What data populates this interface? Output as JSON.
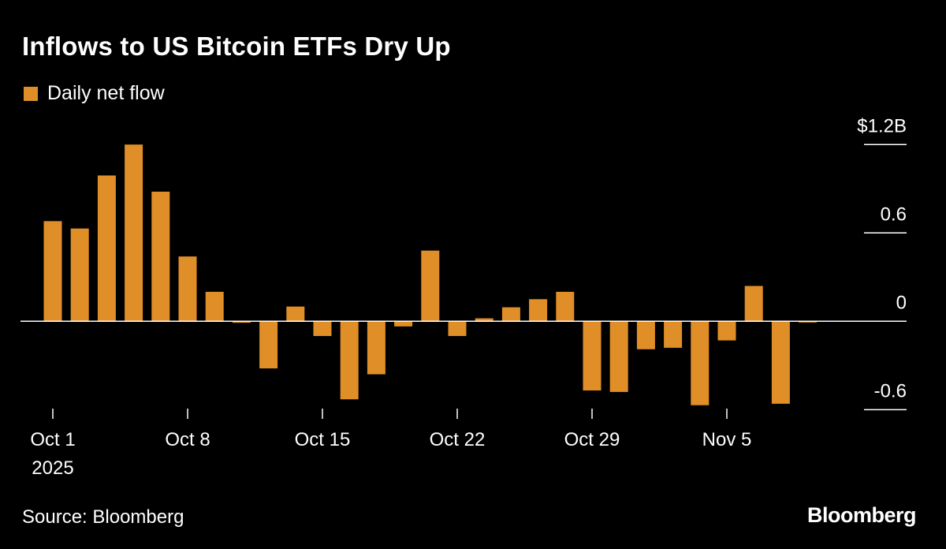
{
  "chart_data": {
    "type": "bar",
    "title": "Inflows to US Bitcoin ETFs Dry Up",
    "legend": {
      "position": "top-left",
      "entries": [
        {
          "name": "Daily net flow",
          "color": "#e08e27"
        }
      ]
    },
    "series": [
      {
        "name": "Daily net flow",
        "color": "#e08e27",
        "values": [
          0.68,
          0.63,
          0.99,
          1.2,
          0.88,
          0.44,
          0.2,
          -0.01,
          -0.32,
          0.1,
          -0.1,
          -0.53,
          -0.36,
          -0.035,
          0.48,
          -0.1,
          0.02,
          0.095,
          0.15,
          0.2,
          -0.47,
          -0.48,
          -0.19,
          -0.18,
          -0.57,
          -0.13,
          0.24,
          -0.56,
          -0.005
        ]
      }
    ],
    "categories": [
      "Oct 1",
      "Oct 2",
      "Oct 3",
      "Oct 6",
      "Oct 7",
      "Oct 8",
      "Oct 9",
      "Oct 10",
      "Oct 13",
      "Oct 14",
      "Oct 15",
      "Oct 16",
      "Oct 17",
      "Oct 20",
      "Oct 21",
      "Oct 22",
      "Oct 23",
      "Oct 24",
      "Oct 27",
      "Oct 28",
      "Oct 29",
      "Oct 30",
      "Oct 31",
      "Nov 3",
      "Nov 4",
      "Nov 5",
      "Nov 6",
      "Nov 7",
      "Nov 10"
    ],
    "x_ticks": [
      {
        "category": "Oct 1",
        "label": "Oct 1",
        "sublabel": "2025"
      },
      {
        "category": "Oct 8",
        "label": "Oct 8"
      },
      {
        "category": "Oct 15",
        "label": "Oct 15"
      },
      {
        "category": "Oct 22",
        "label": "Oct 22"
      },
      {
        "category": "Oct 29",
        "label": "Oct 29"
      },
      {
        "category": "Nov 5",
        "label": "Nov 5"
      }
    ],
    "y_ticks": [
      {
        "value": 1.2,
        "label": "$1.2B"
      },
      {
        "value": 0.6,
        "label": "0.6"
      },
      {
        "value": 0,
        "label": "0"
      },
      {
        "value": -0.6,
        "label": "-0.6"
      }
    ],
    "ylim": [
      -0.6,
      1.2
    ],
    "y_axis_position": "right",
    "unit": "USD billions",
    "xlabel": "",
    "ylabel": "",
    "grid": false
  },
  "footer": {
    "source": "Source: Bloomberg",
    "logo": "Bloomberg"
  }
}
